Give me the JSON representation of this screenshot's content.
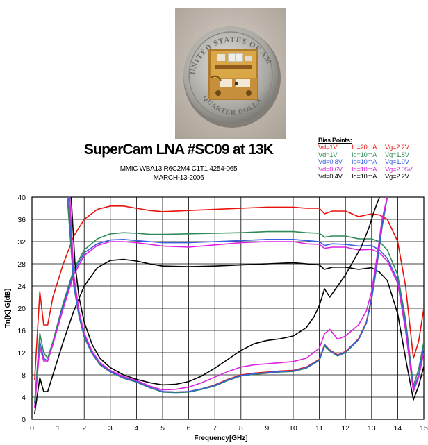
{
  "photo": {
    "coin_top": "UNITED STATES OF AMERICA",
    "coin_bottom": "QUARTER DOLLAR"
  },
  "header": {
    "title": "SuperCam LNA #SC09 at 13K",
    "line1": "MMIC WBA13  R6C2M4  C1T1 4254-065",
    "line2": "MARCH-13-2006"
  },
  "legend": {
    "title": "Bias Points:",
    "rows": [
      {
        "vd": "Vd=1V",
        "id": "Id=20mA",
        "vg": "Vg=2.2V",
        "color": "#e8120c"
      },
      {
        "vd": "Vd=1V",
        "id": "Id=10mA",
        "vg": "Vg=1.8V",
        "color": "#2e8b57"
      },
      {
        "vd": "Vd=0.8V",
        "id": "Id=10mA",
        "vg": "Vg=1.9V",
        "color": "#3a5fe0"
      },
      {
        "vd": "Vd=0.6V",
        "id": "Id=10mA",
        "vg": "Vg=2.05V",
        "color": "#e020e0"
      },
      {
        "vd": "Vd=0.4V",
        "id": "Id=10mA",
        "vg": "Vg=2.2V",
        "color": "#000000"
      }
    ]
  },
  "chart_data": {
    "type": "line",
    "xlabel": "Frequency[GHz]",
    "ylabel": "Tn[K] G[dB]",
    "xlim": [
      0,
      15
    ],
    "ylim": [
      0,
      40
    ],
    "xticks": [
      0,
      1,
      2,
      3,
      4,
      5,
      6,
      7,
      8,
      9,
      10,
      11,
      12,
      13,
      14,
      15
    ],
    "yticks": [
      0,
      4,
      8,
      12,
      16,
      20,
      24,
      28,
      32,
      36,
      40
    ],
    "grid": true,
    "series": [
      {
        "name": "Vd=1V Id=20mA Vg=2.2V gain",
        "color": "#e8120c",
        "x": [
          0.1,
          0.3,
          0.45,
          0.6,
          0.8,
          1.2,
          1.6,
          2,
          2.5,
          3,
          3.5,
          4,
          4.5,
          5,
          6,
          7,
          8,
          9,
          10,
          10.5,
          11,
          11.2,
          11.5,
          12,
          12.5,
          13,
          13.3,
          13.6,
          14,
          14.3,
          14.6,
          14.8,
          15
        ],
        "y": [
          7,
          23,
          17,
          17,
          22,
          28,
          33,
          36,
          37.8,
          38.4,
          38.4,
          38,
          37.6,
          37.4,
          37.6,
          37.8,
          38,
          38.2,
          38.2,
          38,
          38,
          37,
          37.5,
          37.5,
          36.5,
          37,
          36.8,
          36,
          32,
          24,
          11,
          14,
          20
        ]
      },
      {
        "name": "Vd=1V Id=10mA Vg=1.8V gain",
        "color": "#2e8b57",
        "x": [
          0.1,
          0.3,
          0.45,
          0.6,
          0.8,
          1.2,
          1.6,
          2,
          2.5,
          3,
          3.5,
          4,
          4.5,
          5,
          6,
          7,
          8,
          9,
          10,
          10.5,
          11,
          11.2,
          11.5,
          12,
          12.5,
          13,
          13.3,
          13.6,
          14,
          14.3,
          14.6,
          14.8,
          15
        ],
        "y": [
          3,
          15.5,
          12,
          11,
          14,
          21,
          27,
          30.5,
          32.5,
          33.4,
          33.6,
          33.5,
          33.3,
          33.3,
          33.4,
          33.5,
          33.6,
          33.8,
          33.8,
          33.6,
          33.5,
          32.8,
          33,
          33,
          32.5,
          32.5,
          32,
          30.5,
          26,
          18,
          6,
          9,
          14
        ]
      },
      {
        "name": "Vd=0.8V Id=10mA Vg=1.9V gain",
        "color": "#3a5fe0",
        "x": [
          0.1,
          0.3,
          0.45,
          0.6,
          0.8,
          1.2,
          1.6,
          2,
          2.5,
          3,
          3.5,
          4,
          4.5,
          5,
          6,
          7,
          8,
          9,
          10,
          10.5,
          11,
          11.2,
          11.5,
          12,
          12.5,
          13,
          13.3,
          13.6,
          14,
          14.3,
          14.6,
          14.8,
          15
        ],
        "y": [
          2,
          14,
          11,
          10.5,
          13.5,
          20.5,
          26.5,
          30,
          31.6,
          32.3,
          32.4,
          32.2,
          32,
          31.8,
          31.8,
          32,
          32.2,
          32.4,
          32.4,
          32.2,
          32,
          31.3,
          31.6,
          31.5,
          31.2,
          31.3,
          30.5,
          29,
          25,
          17,
          5.5,
          8,
          13
        ]
      },
      {
        "name": "Vd=0.6V Id=10mA Vg=2.05V gain",
        "color": "#e020e0",
        "x": [
          0.1,
          0.3,
          0.45,
          0.6,
          0.8,
          1.2,
          1.6,
          2,
          2.5,
          3,
          3.5,
          4,
          4.5,
          5,
          6,
          7,
          8,
          9,
          10,
          10.5,
          11,
          11.2,
          11.5,
          12,
          12.5,
          13,
          13.3,
          13.6,
          14,
          14.3,
          14.6,
          14.8,
          15
        ],
        "y": [
          2,
          13,
          10.5,
          10.5,
          13.5,
          20,
          26,
          29.5,
          31.3,
          32,
          32,
          31.8,
          31.5,
          31.2,
          31,
          31.4,
          31.8,
          32,
          32,
          31.6,
          31.5,
          30.8,
          31,
          31,
          30.5,
          30.6,
          30,
          28.5,
          24.5,
          16,
          5,
          7.5,
          12
        ]
      },
      {
        "name": "Vd=0.4V Id=10mA Vg=2.2V gain",
        "color": "#000000",
        "x": [
          0.1,
          0.3,
          0.45,
          0.6,
          0.8,
          1.2,
          1.6,
          2,
          2.5,
          3,
          3.5,
          4,
          4.5,
          5,
          6,
          7,
          8,
          9,
          10,
          10.5,
          11,
          11.2,
          11.5,
          12,
          12.5,
          13,
          13.3,
          13.6,
          14,
          14.3,
          14.6,
          14.8,
          15
        ],
        "y": [
          1,
          7.5,
          5,
          5,
          8,
          14,
          19.5,
          24,
          27.3,
          28.6,
          28.8,
          28.5,
          28,
          27.6,
          27.5,
          27.6,
          27.8,
          28,
          28.2,
          28,
          27.8,
          27,
          27.4,
          27.4,
          27,
          27.3,
          26.5,
          25,
          19,
          11,
          3.5,
          6,
          9.5
        ]
      },
      {
        "name": "Vd=1V Id=20mA Vg=2.2V noise",
        "color": "#e8120c",
        "x": [
          1.4,
          1.6,
          1.8,
          2,
          2.3,
          2.6,
          3,
          3.5,
          4,
          4.5,
          5,
          5.5,
          6,
          6.5,
          7,
          7.5,
          8,
          8.5,
          9,
          9.5,
          10,
          10.5,
          11,
          11.2,
          11.4,
          11.7,
          12,
          12.5,
          12.8,
          13,
          13.2,
          13.4,
          13.6
        ],
        "y": [
          40,
          25,
          19,
          15,
          12,
          10,
          8.6,
          7.6,
          6.8,
          5.8,
          5,
          4.9,
          5,
          5.5,
          6.2,
          7.2,
          8,
          8.3,
          8.5,
          8.7,
          8.8,
          9.4,
          10.8,
          13.5,
          12.5,
          11.6,
          12.2,
          14.5,
          17.5,
          22,
          28,
          35,
          40
        ]
      },
      {
        "name": "Vd=1V Id=10mA Vg=1.8V noise",
        "color": "#2e8b57",
        "x": [
          1.35,
          1.6,
          1.8,
          2,
          2.3,
          2.6,
          3,
          3.5,
          4,
          4.5,
          5,
          5.5,
          6,
          6.5,
          7,
          7.5,
          8,
          8.5,
          9,
          9.5,
          10,
          10.5,
          11,
          11.2,
          11.4,
          11.7,
          12,
          12.5,
          12.8,
          13,
          13.2,
          13.4,
          13.6
        ],
        "y": [
          40,
          24,
          18.5,
          14.8,
          11.8,
          9.8,
          8.5,
          7.4,
          6.7,
          5.7,
          4.9,
          4.8,
          4.9,
          5.4,
          6,
          7,
          7.8,
          8.1,
          8.3,
          8.5,
          8.6,
          9.2,
          10.6,
          13.2,
          12.3,
          11.4,
          12,
          14.3,
          17.3,
          21.5,
          27.5,
          34.5,
          40
        ]
      },
      {
        "name": "Vd=0.8V Id=10mA Vg=1.9V noise",
        "color": "#3a5fe0",
        "x": [
          1.4,
          1.6,
          1.8,
          2,
          2.3,
          2.6,
          3,
          3.5,
          4,
          4.5,
          5,
          5.5,
          6,
          6.5,
          7,
          7.5,
          8,
          8.5,
          9,
          9.5,
          10,
          10.5,
          11,
          11.2,
          11.4,
          11.7,
          12,
          12.5,
          12.8,
          13,
          13.2,
          13.4,
          13.6
        ],
        "y": [
          40,
          24.5,
          18.8,
          15,
          12,
          10,
          8.6,
          7.5,
          6.8,
          5.8,
          5,
          4.9,
          5,
          5.5,
          6.1,
          7.1,
          7.9,
          8.2,
          8.4,
          8.6,
          8.7,
          9.3,
          10.7,
          13.4,
          12.4,
          11.5,
          12.1,
          14.4,
          17.4,
          21.8,
          27.8,
          34.8,
          40
        ]
      },
      {
        "name": "Vd=0.6V Id=10mA Vg=2.05V noise",
        "color": "#e020e0",
        "x": [
          1.45,
          1.6,
          1.8,
          2,
          2.3,
          2.6,
          3,
          3.5,
          4,
          4.5,
          5,
          5.5,
          6,
          6.5,
          7,
          7.5,
          8,
          8.5,
          9,
          9.5,
          10,
          10.5,
          11,
          11.2,
          11.4,
          11.7,
          12,
          12.5,
          12.8,
          13,
          13.2,
          13.4,
          13.6
        ],
        "y": [
          40,
          26,
          19.5,
          15.5,
          12.3,
          10.2,
          8.8,
          7.7,
          7,
          6,
          5.3,
          5.4,
          5.8,
          6.6,
          7.6,
          8.6,
          9.4,
          9.8,
          10,
          10.2,
          10.4,
          11,
          12.8,
          15.4,
          16.2,
          14.4,
          15,
          17,
          19.5,
          23,
          29,
          36,
          40
        ]
      },
      {
        "name": "Vd=0.4V Id=10mA Vg=2.2V noise",
        "color": "#000000",
        "x": [
          1.5,
          1.65,
          1.8,
          2,
          2.3,
          2.6,
          3,
          3.5,
          4,
          4.5,
          5,
          5.5,
          6,
          6.5,
          7,
          7.5,
          8,
          8.5,
          9,
          9.5,
          10,
          10.5,
          10.8,
          11,
          11.2,
          11.4,
          11.7,
          12,
          12.3,
          12.6,
          12.9,
          13.1,
          13.3
        ],
        "y": [
          40,
          28,
          22,
          17.5,
          13.5,
          11,
          9.3,
          8,
          7.2,
          6.6,
          6.2,
          6.3,
          6.8,
          7.8,
          9.2,
          10.8,
          12.4,
          13.6,
          14.2,
          14.5,
          15,
          16.5,
          18.5,
          20.5,
          23.5,
          22,
          24,
          26,
          28.5,
          31,
          34.5,
          37.5,
          40
        ]
      }
    ]
  }
}
